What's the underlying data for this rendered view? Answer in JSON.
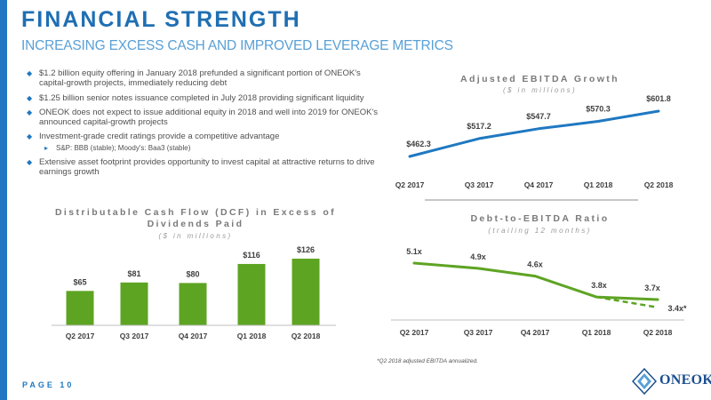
{
  "header": {
    "title": "FINANCIAL STRENGTH",
    "subtitle": "INCREASING EXCESS CASH AND IMPROVED LEVERAGE METRICS"
  },
  "bullets": [
    "$1.2 billion equity offering in January 2018 prefunded a significant portion of ONEOK's capital-growth projects, immediately reducing debt",
    "$1.25 billion senior notes issuance completed in July 2018 providing significant liquidity",
    "ONEOK does not expect to issue additional equity in 2018 and well into 2019 for ONEOK's announced capital-growth projects",
    "Investment-grade credit ratings provide a competitive advantage",
    "Extensive asset footprint provides opportunity to invest capital at attractive returns to drive earnings growth"
  ],
  "sub_bullet": "S&P: BBB (stable);   Moody's: Baa3 (stable)",
  "chart_data": [
    {
      "type": "line",
      "title": "Adjusted EBITDA Growth",
      "subtitle": "($ in millions)",
      "categories": [
        "Q2 2017",
        "Q3 2017",
        "Q4 2017",
        "Q1 2018",
        "Q2 2018"
      ],
      "values": [
        462.3,
        517.2,
        547.7,
        570.3,
        601.8
      ],
      "labels": [
        "$462.3",
        "$517.2",
        "$547.7",
        "$570.3",
        "$601.8"
      ],
      "color": "#1f78c1"
    },
    {
      "type": "bar",
      "title": "Distributable Cash Flow (DCF) in Excess of Dividends Paid",
      "subtitle": "($ in millions)",
      "categories": [
        "Q2 2017",
        "Q3 2017",
        "Q4 2017",
        "Q1 2018",
        "Q2 2018"
      ],
      "values": [
        65,
        81,
        80,
        116,
        126
      ],
      "labels": [
        "$65",
        "$81",
        "$80",
        "$116",
        "$126"
      ],
      "color": "#5ea423"
    },
    {
      "type": "line",
      "title": "Debt-to-EBITDA Ratio",
      "subtitle": "(trailing 12 months)",
      "categories": [
        "Q2 2017",
        "Q3 2017",
        "Q4 2017",
        "Q1 2018",
        "Q2 2018"
      ],
      "values": [
        5.1,
        4.9,
        4.6,
        3.8,
        3.7
      ],
      "labels": [
        "5.1x",
        "4.9x",
        "4.6x",
        "3.8x",
        "3.7x"
      ],
      "annualized": {
        "values": [
          3.8,
          3.4
        ],
        "label": "3.4x*"
      },
      "color": "#5ea423"
    }
  ],
  "footnote": "*Q2 2018 adjusted EBITDA annualized.",
  "page_label": "PAGE 10",
  "logo_text": "ONEOK",
  "logo_icon": "oneok-diamond-logo-icon"
}
